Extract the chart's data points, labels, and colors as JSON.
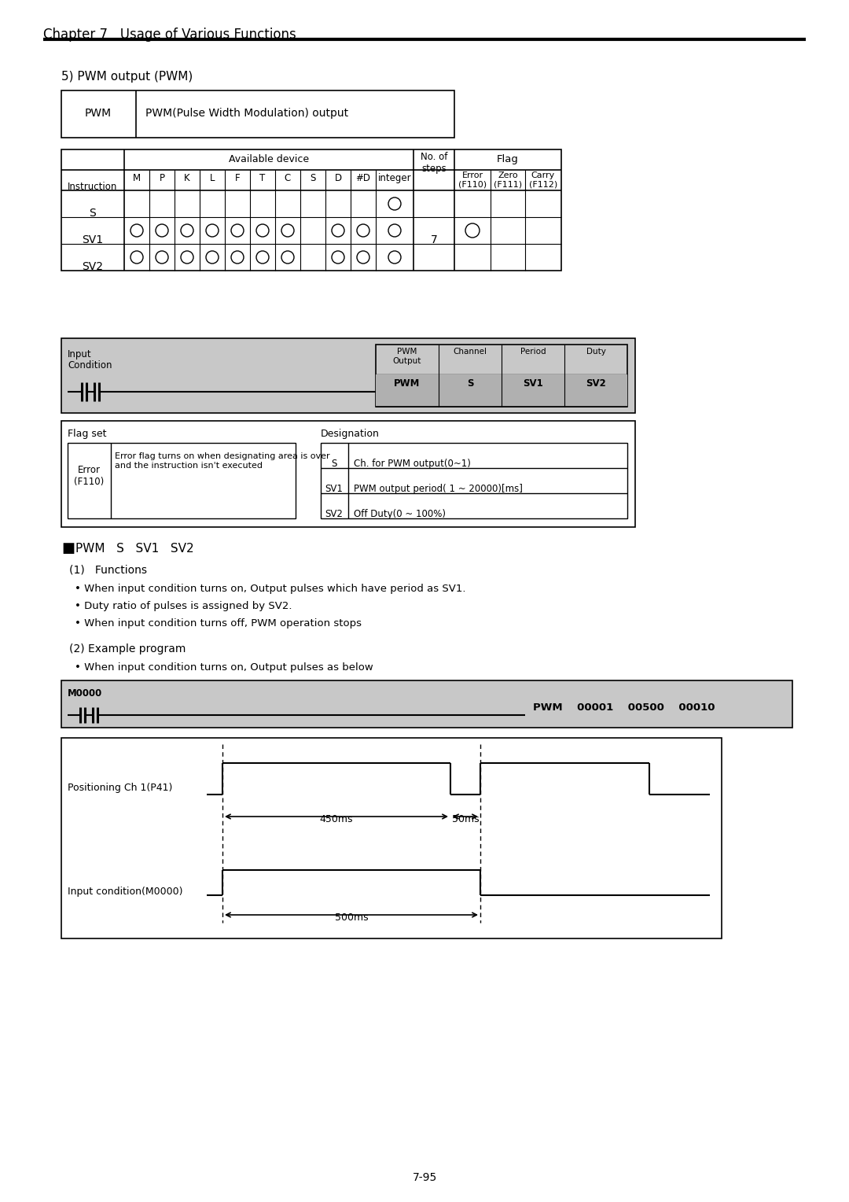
{
  "page_title": "Chapter 7   Usage of Various Functions",
  "section_title": "5) PWM output (PWM)",
  "pwm_desc": "PWM(Pulse Width Modulation) output",
  "flag_set_label": "Flag set",
  "designation_label": "Designation",
  "error_desc": "Error flag turns on when designating area is over\nand the instruction isn't executed",
  "desig_rows": [
    {
      "name": "S",
      "desc": "Ch. for PWM output(0~1)"
    },
    {
      "name": "SV1",
      "desc": "PWM output period( 1 ~ 20000)[ms]"
    },
    {
      "name": "SV2",
      "desc": "Off Duty(0 ~ 100%)"
    }
  ],
  "bullet1": "• When input condition turns on, Output pulses which have period as SV1.",
  "bullet2": "• Duty ratio of pulses is assigned by SV2.",
  "bullet3": "• When input condition turns off, PWM operation stops",
  "example_label": "(2) Example program",
  "example_bullet": "• When input condition turns on, Output pulses as below",
  "waveform_label1": "Positioning Ch 1(P41)",
  "waveform_label2": "Input condition(M0000)",
  "waveform_450ms": "450ms",
  "waveform_50ms": "50ms",
  "waveform_500ms": "500ms",
  "page_num": "7-95",
  "bg_color": "#ffffff",
  "gray_color": "#c8c8c8",
  "dark_gray": "#b0b0b0"
}
